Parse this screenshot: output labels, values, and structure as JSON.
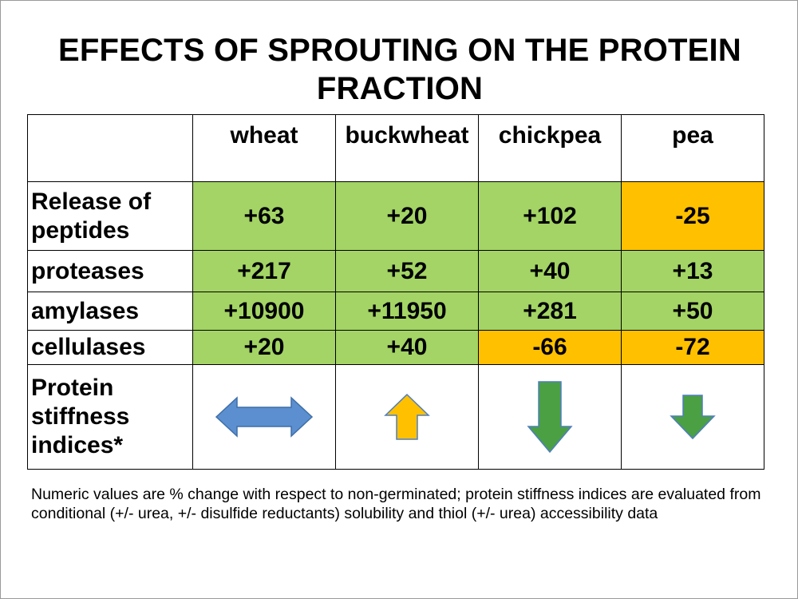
{
  "slide": {
    "title": "EFFECTS OF SPROUTING ON THE PROTEIN FRACTION",
    "table": {
      "corner": "",
      "columns": [
        "wheat",
        "buckwheat",
        "chickpea",
        "pea"
      ],
      "rows": [
        {
          "label": "Release of peptides",
          "values": [
            "+63",
            "+20",
            "+102",
            "-25"
          ]
        },
        {
          "label": "proteases",
          "values": [
            "+217",
            "+52",
            "+40",
            "+13"
          ]
        },
        {
          "label": "amylases",
          "values": [
            "+10900",
            "+11950",
            "+281",
            "+50"
          ]
        },
        {
          "label": "cellulases",
          "values": [
            "+20",
            "+40",
            "-66",
            "-72"
          ]
        }
      ],
      "stiffness_row": {
        "label": "Protein stiffness indices*",
        "arrows": [
          {
            "icon": "double-horizontal-arrow-icon",
            "direction": "both",
            "color": "#5b8fd0"
          },
          {
            "icon": "up-arrow-icon",
            "direction": "up",
            "color": "#ffc000"
          },
          {
            "icon": "down-arrow-icon",
            "direction": "down",
            "color": "#4aa043"
          },
          {
            "icon": "down-arrow-icon",
            "direction": "down",
            "color": "#4aa043"
          }
        ]
      }
    },
    "colors": {
      "positive_fill": "#a3d465",
      "negative_fill": "#ffc000"
    },
    "footnote": "Numeric values are % change with respect to non-germinated; protein stiffness indices are evaluated from conditional (+/- urea, +/- disulfide reductants) solubility and thiol (+/- urea) accessibility data"
  }
}
